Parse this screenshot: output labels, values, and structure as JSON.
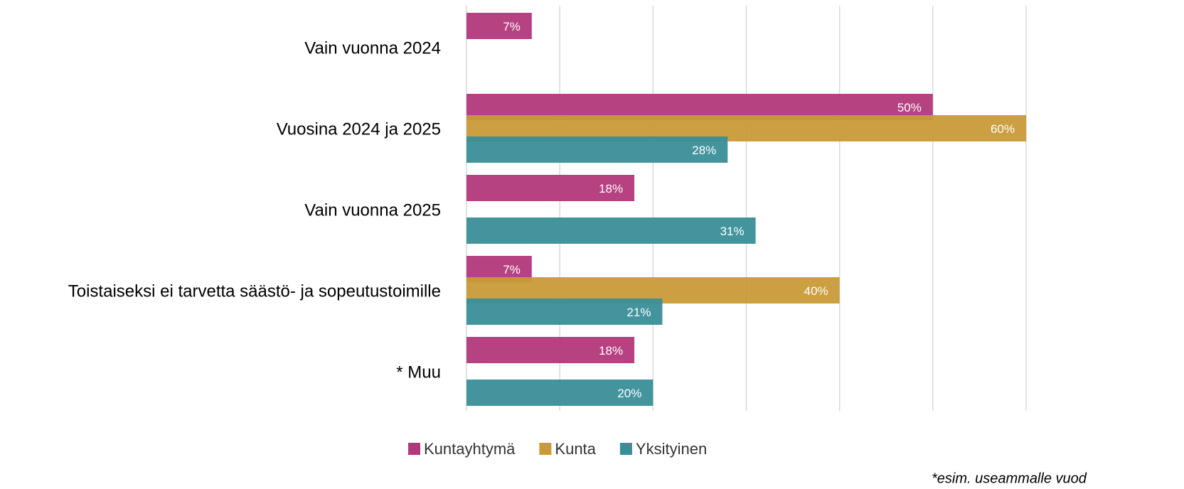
{
  "chart_data": {
    "type": "hbar",
    "categories": [
      "Vain vuonna 2024",
      "Vuosina 2024 ja 2025",
      "Vain vuonna 2025",
      "Toistaiseksi ei tarvetta säästö- ja sopeutustoimille",
      "* Muu"
    ],
    "series": [
      {
        "name": "Kuntayhtymä",
        "color": "#b2387a",
        "values": [
          7,
          50,
          18,
          7,
          18
        ],
        "value_labels": [
          "7%",
          "50%",
          "18%",
          "7%",
          "18%"
        ]
      },
      {
        "name": "Kunta",
        "color": "#c99a38",
        "values": [
          null,
          60,
          null,
          40,
          null
        ],
        "value_labels": [
          null,
          "60%",
          null,
          "40%",
          null
        ]
      },
      {
        "name": "Yksityinen",
        "color": "#3a8e99",
        "values": [
          null,
          28,
          31,
          21,
          20
        ],
        "value_labels": [
          null,
          "28%",
          "31%",
          "21%",
          "20%"
        ]
      }
    ],
    "xlim": [
      0,
      60
    ],
    "xticks": [
      0,
      10,
      20,
      30,
      40,
      50,
      60
    ],
    "grid": true,
    "annotation": "*esim. useammalle vuod"
  }
}
